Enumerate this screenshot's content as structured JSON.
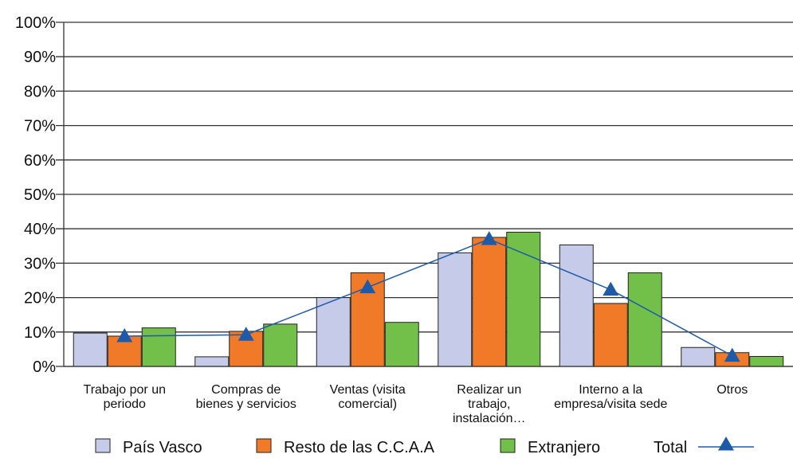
{
  "chart_data": {
    "type": "bar",
    "categories": [
      [
        "Trabajo por un",
        "periodo"
      ],
      [
        "Compras de",
        "bienes y servicios"
      ],
      [
        "Ventas (visita",
        "comercial)"
      ],
      [
        "Realizar un",
        "trabajo,",
        "instalación…"
      ],
      [
        "Interno a la",
        "empresa/visita sede"
      ],
      [
        "Otros"
      ]
    ],
    "series": [
      {
        "name": "País Vasco",
        "color": "#c5cbe8",
        "values": [
          9.7,
          2.8,
          20.0,
          33.0,
          35.3,
          5.5
        ]
      },
      {
        "name": "Resto de las C.C.A.A",
        "color": "#f07a28",
        "values": [
          8.8,
          10.2,
          27.2,
          37.5,
          18.3,
          4.0
        ]
      },
      {
        "name": "Extranjero",
        "color": "#72bf4a",
        "values": [
          11.2,
          12.3,
          12.8,
          39.0,
          27.2,
          2.9
        ]
      }
    ],
    "line_series": {
      "name": "Total",
      "color": "#1f5aa8",
      "values": [
        8.8,
        9.2,
        23.0,
        37.0,
        22.3,
        3.1
      ]
    },
    "yticks": [
      "0%",
      "10%",
      "20%",
      "30%",
      "40%",
      "50%",
      "60%",
      "70%",
      "80%",
      "90%",
      "100%"
    ],
    "ylim": [
      0,
      100
    ],
    "grid": true,
    "legend_position": "bottom"
  }
}
